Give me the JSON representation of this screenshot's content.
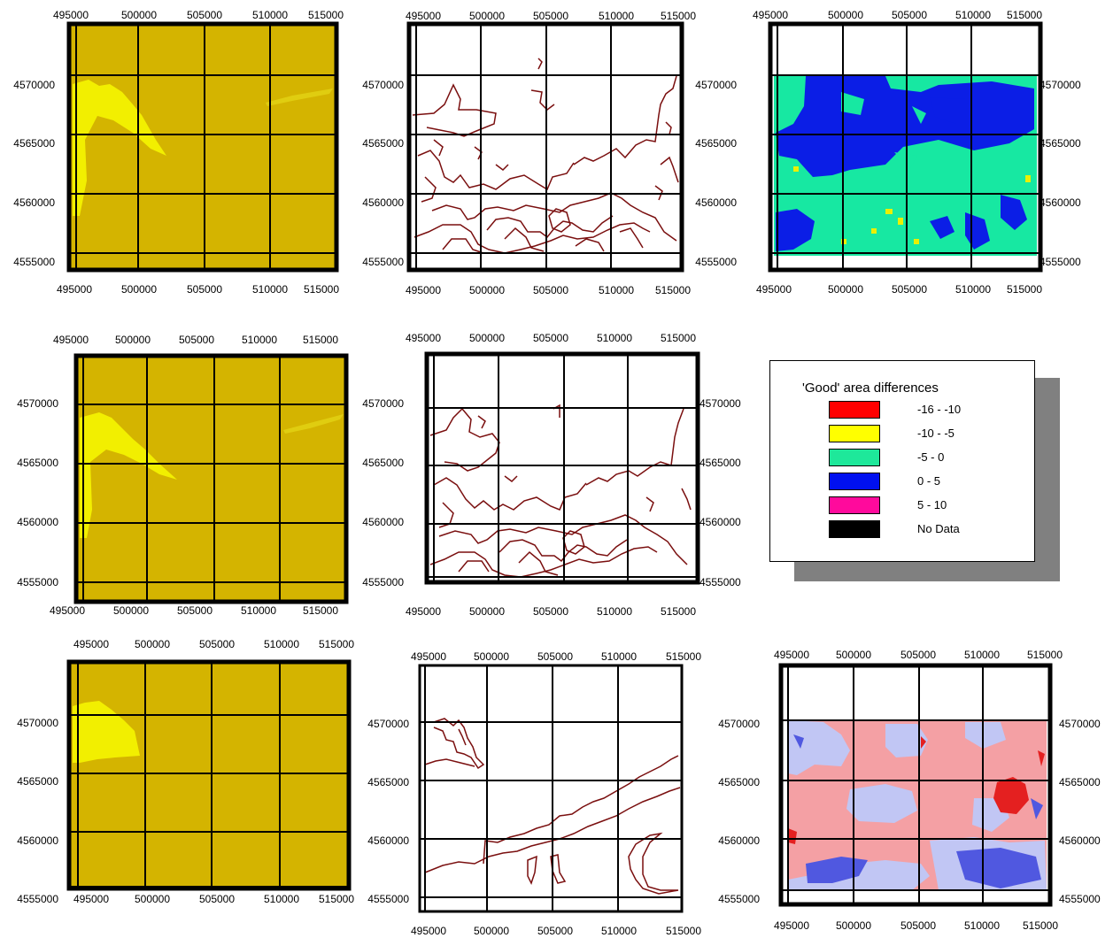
{
  "x_ticks": [
    "495000",
    "500000",
    "505000",
    "510000",
    "515000"
  ],
  "y_ticks": [
    "4570000",
    "4565000",
    "4560000",
    "4555000"
  ],
  "colors": {
    "olive": "#d4b400",
    "yellow": "#f2ef00",
    "contour": "#7a0f0f",
    "diff_cyan": "#17e8a2",
    "diff_blue": "#0b1ee6",
    "salmon": "#f4a0a4",
    "lavender": "#c1c6f4"
  },
  "legend": {
    "title": "'Good' area differences",
    "items": [
      {
        "label": "-16 - -10",
        "color": "#ff0000"
      },
      {
        "label": "-10 - -5",
        "color": "#ffff00"
      },
      {
        "label": "-5 - 0",
        "color": "#1ee89a"
      },
      {
        "label": "0 - 5",
        "color": "#0010f0"
      },
      {
        "label": "5 - 10",
        "color": "#ff0a9c"
      },
      {
        "label": "No Data",
        "color": "#000000"
      }
    ]
  },
  "maps": [
    {
      "id": "r1c1",
      "kind": "raster"
    },
    {
      "id": "r1c2",
      "kind": "contour"
    },
    {
      "id": "r1c3",
      "kind": "difference"
    },
    {
      "id": "r2c1",
      "kind": "raster"
    },
    {
      "id": "r2c2",
      "kind": "contour"
    },
    {
      "id": "r3c1",
      "kind": "raster"
    },
    {
      "id": "r3c2",
      "kind": "contour-simple"
    },
    {
      "id": "r3c3",
      "kind": "difference-diverging"
    }
  ]
}
